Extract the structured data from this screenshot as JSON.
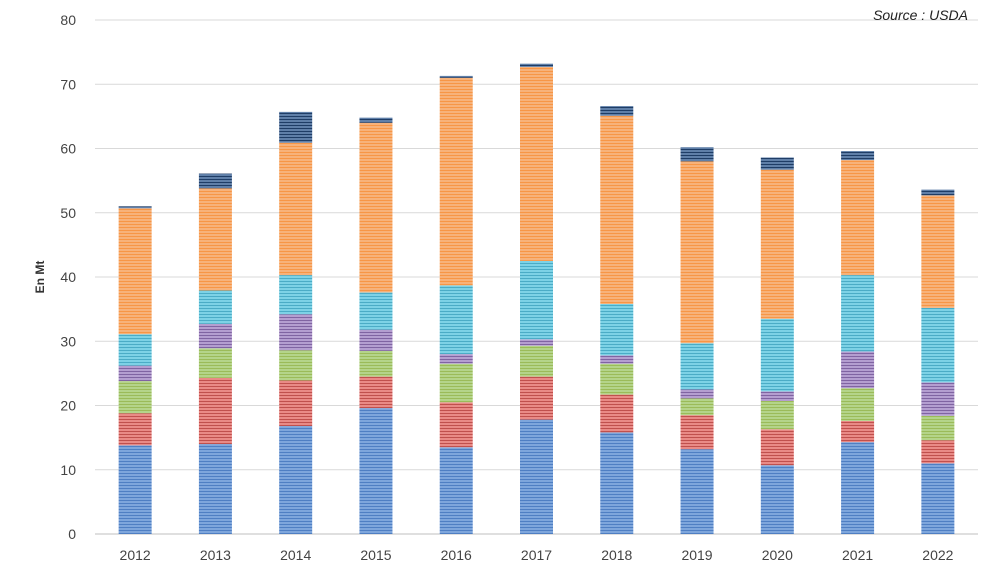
{
  "source": "Source : USDA",
  "chart_data": {
    "type": "bar",
    "stacked": true,
    "ylabel": "En Mt",
    "xlabel": "",
    "ylim": [
      0,
      80
    ],
    "yticks": [
      0,
      10,
      20,
      30,
      40,
      50,
      60,
      70,
      80
    ],
    "grid": true,
    "categories": [
      "2012",
      "2013",
      "2014",
      "2015",
      "2016",
      "2017",
      "2018",
      "2019",
      "2020",
      "2021",
      "2022"
    ],
    "series": [
      {
        "color": "#7ea6dc",
        "stripe": "#4f7fc3",
        "values": [
          13.8,
          14.0,
          16.8,
          19.6,
          13.5,
          17.8,
          15.8,
          13.2,
          10.7,
          14.3,
          11.0
        ]
      },
      {
        "color": "#e98a86",
        "stripe": "#c0504d",
        "values": [
          5.0,
          10.3,
          7.1,
          4.9,
          7.0,
          6.7,
          5.9,
          5.3,
          5.6,
          3.3,
          3.6
        ]
      },
      {
        "color": "#b4d48a",
        "stripe": "#9bbb59",
        "values": [
          5.0,
          4.6,
          4.7,
          4.0,
          6.0,
          4.8,
          4.8,
          2.6,
          4.4,
          5.1,
          3.8
        ]
      },
      {
        "color": "#b49ed0",
        "stripe": "#8064a2",
        "values": [
          2.4,
          3.8,
          5.6,
          3.3,
          1.5,
          1.0,
          1.3,
          1.4,
          1.5,
          5.7,
          5.2
        ]
      },
      {
        "color": "#7dd2e6",
        "stripe": "#4bacc6",
        "values": [
          4.9,
          5.2,
          6.1,
          5.8,
          10.7,
          12.2,
          8.0,
          7.2,
          11.3,
          11.9,
          11.6
        ]
      },
      {
        "color": "#f7b27a",
        "stripe": "#f79646",
        "values": [
          19.6,
          15.9,
          20.6,
          26.4,
          32.3,
          30.2,
          29.3,
          28.3,
          23.2,
          17.9,
          17.5
        ]
      },
      {
        "color": "#5f7fa8",
        "stripe": "#1f3d66",
        "values": [
          0.3,
          2.3,
          4.8,
          0.8,
          0.3,
          0.5,
          1.5,
          2.2,
          1.9,
          1.4,
          0.9
        ]
      }
    ]
  }
}
